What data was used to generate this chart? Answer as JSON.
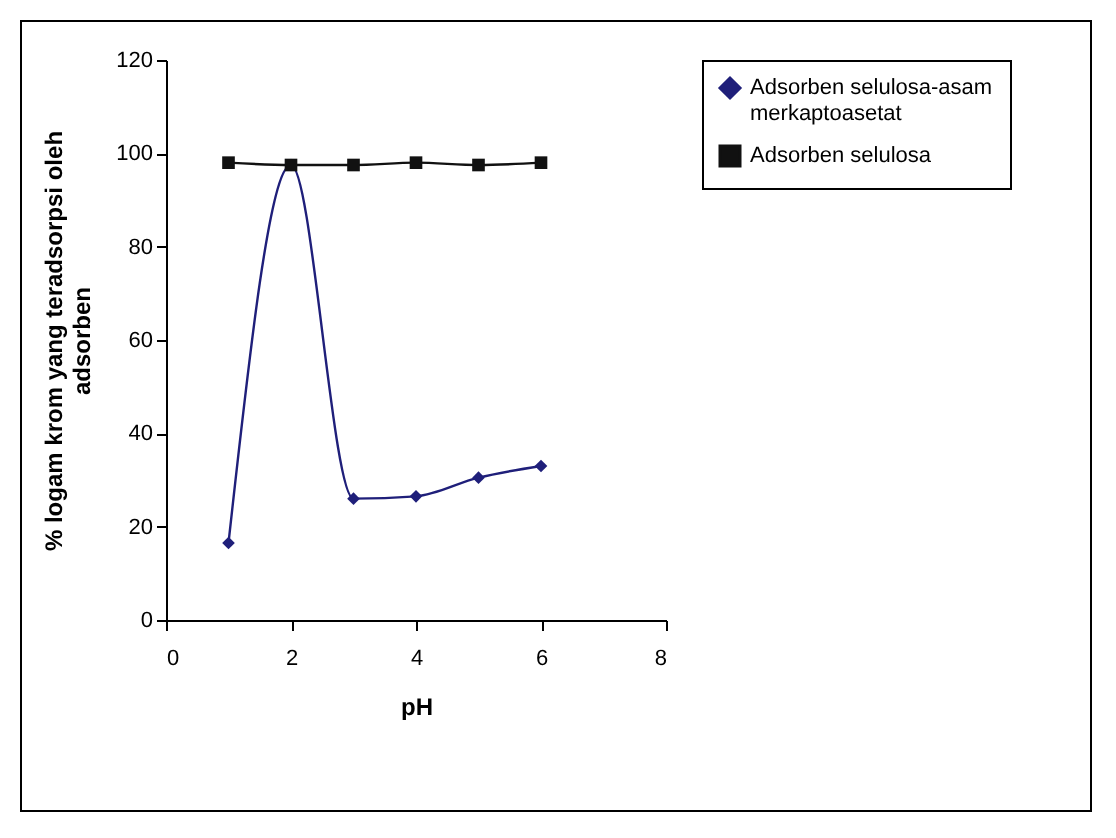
{
  "chart_data": {
    "type": "line",
    "xlabel": "pH",
    "ylabel": "% logam krom yang teradsorpsi oleh adsorben",
    "x": [
      1,
      2,
      3,
      4,
      5,
      6
    ],
    "series": [
      {
        "name": "Adsorben selulosa-asam merkaptoasetat",
        "color": "#1f1f7a",
        "marker": "diamond",
        "values": [
          16.5,
          97.5,
          26,
          26.5,
          30.5,
          33
        ]
      },
      {
        "name": "Adsorben selulosa",
        "color": "#111111",
        "marker": "square",
        "values": [
          98,
          97.5,
          97.5,
          98,
          97.5,
          98
        ]
      }
    ],
    "xlim": [
      0,
      8
    ],
    "xticks": [
      0,
      2,
      4,
      6,
      8
    ],
    "ylim": [
      0,
      120
    ],
    "yticks": [
      0,
      20,
      40,
      60,
      80,
      100,
      120
    ],
    "grid": false,
    "legend": "right"
  }
}
